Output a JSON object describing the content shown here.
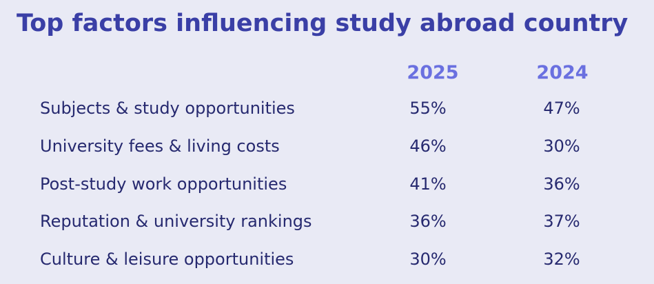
{
  "title": "Top factors influencing study abroad country",
  "chart_data": {
    "type": "table",
    "title": "Top factors influencing study abroad country",
    "columns": [
      "2025",
      "2024"
    ],
    "rows": [
      {
        "label": "Subjects & study opportunities",
        "values": [
          "55%",
          "47%"
        ]
      },
      {
        "label": "University fees & living costs",
        "values": [
          "46%",
          "30%"
        ]
      },
      {
        "label": "Post-study work opportunities",
        "values": [
          "41%",
          "36%"
        ]
      },
      {
        "label": "Reputation & university rankings",
        "values": [
          "36%",
          "37%"
        ]
      },
      {
        "label": "Culture & leisure opportunities",
        "values": [
          "30%",
          "32%"
        ]
      }
    ]
  },
  "colors": {
    "background": "#e9eaf5",
    "title": "#3a3fa6",
    "column_header": "#6a70e0",
    "body_text": "#26296f"
  }
}
